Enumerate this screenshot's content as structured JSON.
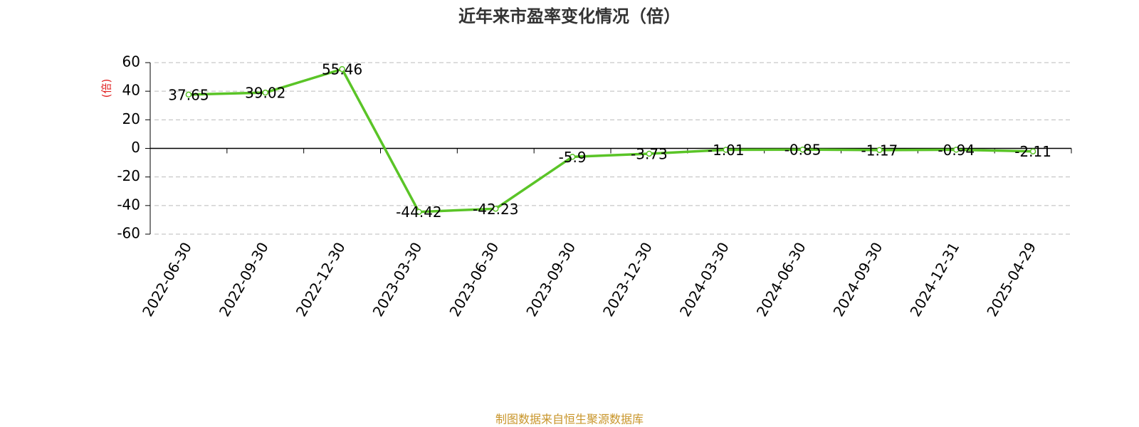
{
  "chart_data": {
    "type": "line",
    "title": "近年来市盈率变化情况（倍）",
    "ylabel": "(倍)",
    "source": "制图数据来自恒生聚源数据库",
    "categories": [
      "2022-06-30",
      "2022-09-30",
      "2022-12-30",
      "2023-03-30",
      "2023-06-30",
      "2023-09-30",
      "2023-12-30",
      "2024-03-30",
      "2024-06-30",
      "2024-09-30",
      "2024-12-31",
      "2025-04-29"
    ],
    "values": [
      37.65,
      39.02,
      55.46,
      -44.42,
      -42.23,
      -5.9,
      -3.73,
      -1.01,
      -0.85,
      -1.17,
      -0.94,
      -2.11
    ],
    "color": "#5ac427",
    "ylim": [
      -60,
      60
    ],
    "yticks": [
      -60,
      -40,
      -20,
      0,
      20,
      40,
      60
    ],
    "grid": true
  }
}
